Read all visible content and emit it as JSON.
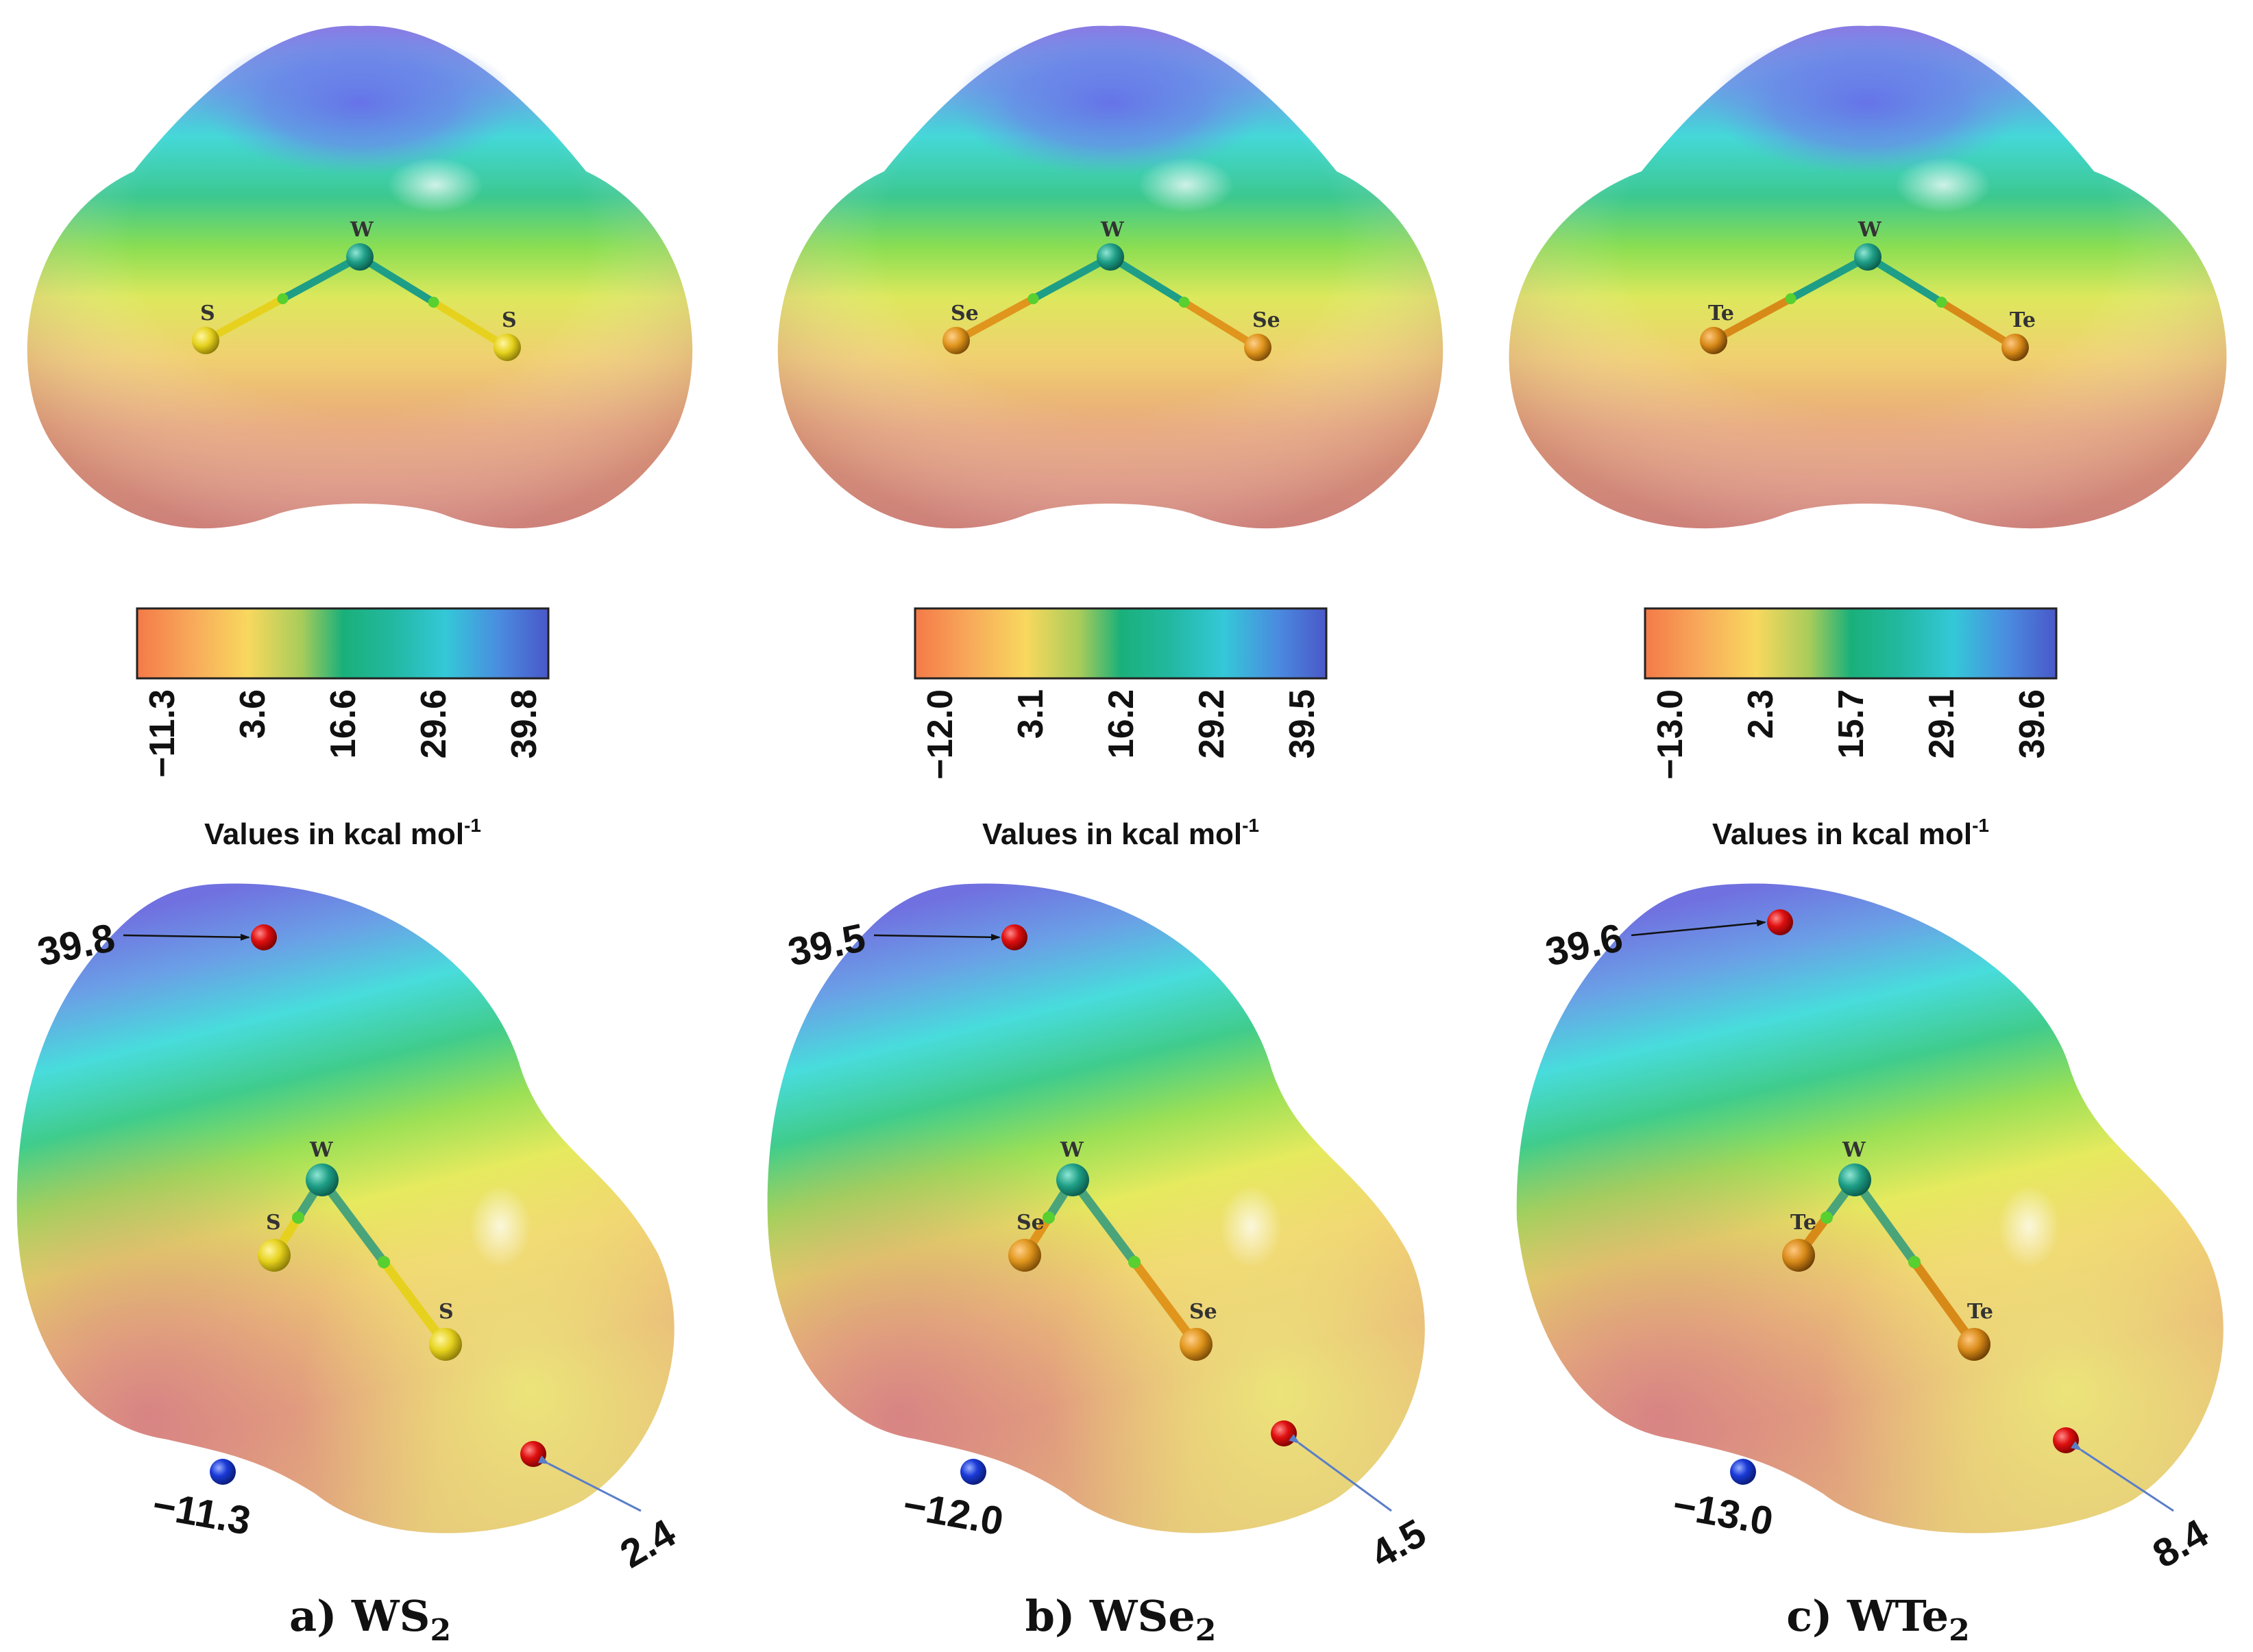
{
  "panels": [
    {
      "caption_prefix": "a) ",
      "formula": "WS",
      "subscript": "2",
      "metal": "W",
      "chalcogen": "S",
      "colorbar_ticks": [
        "−11.3",
        "3.6",
        "16.6",
        "29.6",
        "39.8"
      ],
      "unit_label": "Values in kcal mol",
      "unit_sup": "-1",
      "vs_max": "39.8",
      "vs_min": "−11.3",
      "vs_local": "2.4",
      "chalcogen_color": "#e6d21e"
    },
    {
      "caption_prefix": "b) ",
      "formula": "WSe",
      "subscript": "2",
      "metal": "W",
      "chalcogen": "Se",
      "colorbar_ticks": [
        "−12.0",
        "3.1",
        "16.2",
        "29.2",
        "39.5"
      ],
      "unit_label": "Values in kcal mol",
      "unit_sup": "-1",
      "vs_max": "39.5",
      "vs_min": "−12.0",
      "vs_local": "4.5",
      "chalcogen_color": "#e0951c"
    },
    {
      "caption_prefix": "c) ",
      "formula": "WTe",
      "subscript": "2",
      "metal": "W",
      "chalcogen": "Te",
      "colorbar_ticks": [
        "−13.0",
        "2.3",
        "15.7",
        "29.1",
        "39.6"
      ],
      "unit_label": "Values in kcal mol",
      "unit_sup": "-1",
      "vs_max": "39.6",
      "vs_min": "−13.0",
      "vs_local": "8.4",
      "chalcogen_color": "#d88a18"
    }
  ],
  "colors": {
    "metal": "#1e9e86",
    "bond_mid": "#58d030",
    "max_point": "#e01010",
    "min_point": "#1a3ad8",
    "arrow_dark": "#111111",
    "arrow_blue": "#5a7ec8"
  }
}
